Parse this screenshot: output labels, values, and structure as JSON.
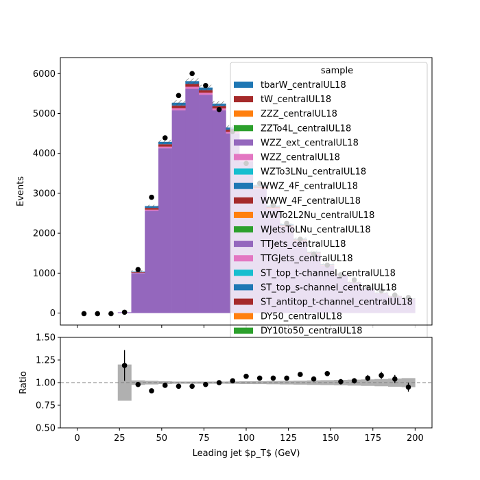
{
  "chart_data": [
    {
      "type": "bar",
      "stacked": true,
      "ylabel": "Events",
      "ylim": [
        -300,
        6400
      ],
      "yticks": [
        0,
        1000,
        2000,
        3000,
        4000,
        5000,
        6000
      ],
      "xlim": [
        -10,
        210
      ],
      "bin_edges": [
        0,
        8,
        16,
        24,
        32,
        40,
        48,
        56,
        64,
        72,
        80,
        88,
        96,
        104,
        112,
        120,
        128,
        136,
        144,
        152,
        160,
        168,
        176,
        184,
        192,
        200
      ],
      "series": [
        {
          "name": "TTJets_centralUL18",
          "color": "#9467bd",
          "values": [
            0,
            0,
            0,
            20,
            1000,
            2560,
            4130,
            5080,
            5620,
            5470,
            5080,
            4500,
            3800,
            3100,
            2600,
            2150,
            1800,
            1480,
            1180,
            940,
            750,
            600,
            490,
            410,
            350
          ]
        },
        {
          "name": "WZZ_centralUL18",
          "color": "#e377c2",
          "values": [
            0,
            0,
            0,
            0,
            10,
            30,
            40,
            50,
            50,
            50,
            45,
            40,
            35,
            30,
            25,
            20,
            18,
            15,
            12,
            10,
            8,
            7,
            6,
            5,
            4
          ]
        },
        {
          "name": "tW_centralUL18",
          "color": "#a52a2a",
          "values": [
            0,
            0,
            0,
            0,
            15,
            45,
            60,
            70,
            70,
            65,
            60,
            55,
            45,
            40,
            35,
            30,
            25,
            20,
            17,
            14,
            12,
            10,
            8,
            7,
            6
          ]
        },
        {
          "name": "tbarW_centralUL18",
          "color": "#1f77b4",
          "values": [
            0,
            0,
            0,
            0,
            15,
            45,
            60,
            70,
            70,
            65,
            60,
            55,
            45,
            40,
            35,
            30,
            25,
            20,
            17,
            14,
            12,
            10,
            8,
            7,
            6
          ]
        }
      ],
      "data_points": {
        "x": [
          4,
          12,
          20,
          28,
          36,
          44,
          52,
          60,
          68,
          76,
          84,
          92,
          100,
          108,
          116,
          124,
          132,
          140,
          148,
          156,
          164,
          172,
          180,
          188,
          196
        ],
        "y": [
          -15,
          -15,
          -15,
          20,
          1090,
          2900,
          4390,
          5450,
          6000,
          5700,
          5100,
          4550,
          3750,
          3250,
          2700,
          2250,
          1850,
          1480,
          1200,
          960,
          830,
          650,
          560,
          450,
          390
        ]
      },
      "legend": {
        "title": "sample",
        "position": "upper-right",
        "entries": [
          {
            "label": "tbarW_centralUL18",
            "color": "#1f77b4"
          },
          {
            "label": "tW_centralUL18",
            "color": "#a52a2a"
          },
          {
            "label": "ZZZ_centralUL18",
            "color": "#ff7f0e"
          },
          {
            "label": "ZZTo4L_centralUL18",
            "color": "#2ca02c"
          },
          {
            "label": "WZZ_ext_centralUL18",
            "color": "#9467bd"
          },
          {
            "label": "WZZ_centralUL18",
            "color": "#e377c2"
          },
          {
            "label": "WZTo3LNu_centralUL18",
            "color": "#17becf"
          },
          {
            "label": "WWZ_4F_centralUL18",
            "color": "#1f77b4"
          },
          {
            "label": "WWW_4F_centralUL18",
            "color": "#a52a2a"
          },
          {
            "label": "WWTo2L2Nu_centralUL18",
            "color": "#ff7f0e"
          },
          {
            "label": "WJetsToLNu_centralUL18",
            "color": "#2ca02c"
          },
          {
            "label": "TTJets_centralUL18",
            "color": "#9467bd"
          },
          {
            "label": "TTGJets_centralUL18",
            "color": "#e377c2"
          },
          {
            "label": "ST_top_t-channel_centralUL18",
            "color": "#17becf"
          },
          {
            "label": "ST_top_s-channel_centralUL18",
            "color": "#1f77b4"
          },
          {
            "label": "ST_antitop_t-channel_centralUL18",
            "color": "#a52a2a"
          },
          {
            "label": "DY50_centralUL18",
            "color": "#ff7f0e"
          },
          {
            "label": "DY10to50_centralUL18",
            "color": "#2ca02c"
          }
        ]
      }
    },
    {
      "type": "scatter",
      "xlabel": "Leading jet  $p_T$ (GeV)",
      "ylabel": "Ratio",
      "ylim": [
        0.5,
        1.5
      ],
      "yticks": [
        "0.50",
        "0.75",
        "1.00",
        "1.25",
        "1.50"
      ],
      "xlim": [
        -10,
        210
      ],
      "xticks": [
        0,
        25,
        50,
        75,
        100,
        125,
        150,
        175,
        200
      ],
      "reference_line": 1.0,
      "x": [
        28,
        36,
        44,
        52,
        60,
        68,
        76,
        84,
        92,
        100,
        108,
        116,
        124,
        132,
        140,
        148,
        156,
        164,
        172,
        180,
        188,
        196
      ],
      "y": [
        1.19,
        0.98,
        0.91,
        0.97,
        0.96,
        0.96,
        0.98,
        1.0,
        1.02,
        1.07,
        1.05,
        1.05,
        1.05,
        1.09,
        1.04,
        1.1,
        1.01,
        1.02,
        1.05,
        1.08,
        1.04,
        0.95
      ],
      "yerr": [
        0.17,
        0.02,
        0.015,
        0.012,
        0.01,
        0.01,
        0.01,
        0.01,
        0.012,
        0.015,
        0.015,
        0.02,
        0.02,
        0.02,
        0.025,
        0.025,
        0.03,
        0.03,
        0.035,
        0.04,
        0.045,
        0.05
      ],
      "uncertainty_band": {
        "bin_edges": [
          24,
          32,
          40,
          48,
          56,
          64,
          72,
          80,
          88,
          96,
          104,
          112,
          120,
          128,
          136,
          144,
          152,
          160,
          168,
          176,
          184,
          192,
          200
        ],
        "halfwidth": [
          0.2,
          0.025,
          0.02,
          0.015,
          0.012,
          0.012,
          0.012,
          0.012,
          0.013,
          0.015,
          0.016,
          0.018,
          0.02,
          0.022,
          0.025,
          0.027,
          0.03,
          0.033,
          0.036,
          0.04,
          0.045,
          0.05
        ]
      }
    }
  ]
}
